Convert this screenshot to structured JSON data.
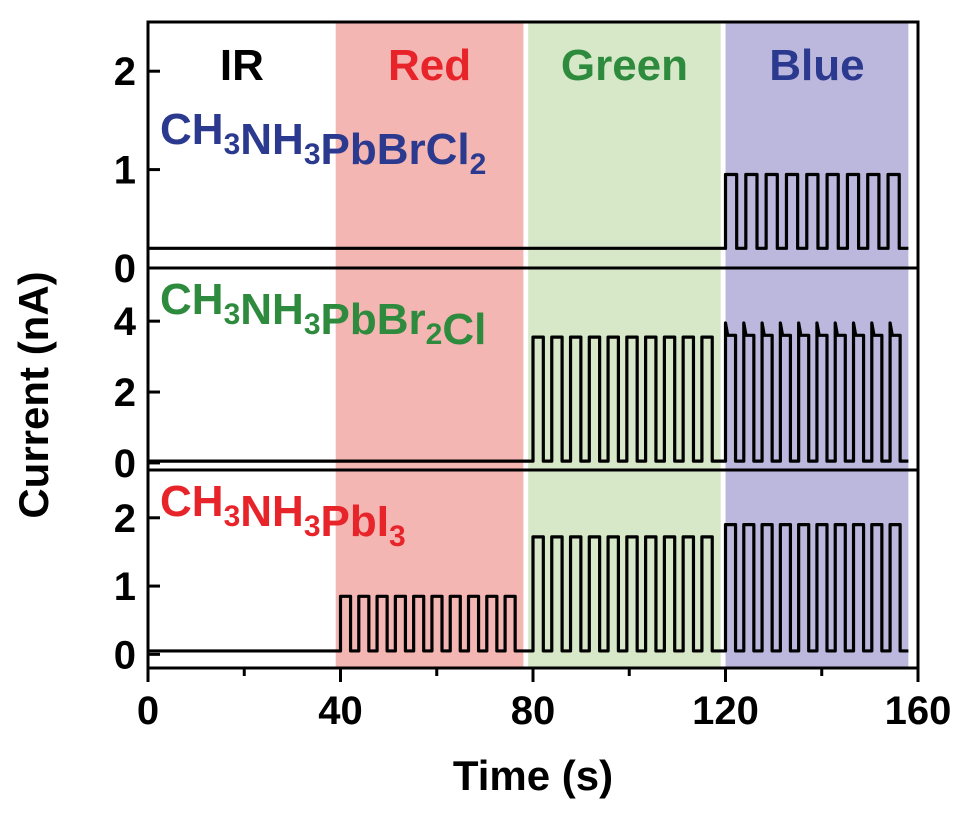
{
  "chart_data": {
    "type": "line",
    "xlabel": "Time (s)",
    "ylabel": "Current (nA)",
    "xlim": [
      0,
      160
    ],
    "x_ticks": [
      "0",
      "40",
      "80",
      "120",
      "160"
    ],
    "grid": false,
    "illumination_bands": [
      {
        "label": "IR",
        "start": 0,
        "end": 39,
        "color": "#ffffff",
        "text_color": "#000000"
      },
      {
        "label": "Red",
        "start": 39,
        "end": 78,
        "color": "#f4b6b3",
        "text_color": "#e8242b"
      },
      {
        "label": "Green",
        "start": 79,
        "end": 119,
        "color": "#d6e8c8",
        "text_color": "#2e8b3e"
      },
      {
        "label": "Blue",
        "start": 120,
        "end": 158,
        "color": "#bcb7dc",
        "text_color": "#2b3a8f"
      }
    ],
    "panels": [
      {
        "material": {
          "pre": "CH",
          "s1": "3",
          "mid": "NH",
          "s2": "3",
          "post": "PbBrCl",
          "s3": "2",
          "tail": ""
        },
        "material_color": "#2b3a8f",
        "ylim": [
          0,
          2.5
        ],
        "y_ticks": [
          "0",
          "1",
          "2"
        ],
        "baseline": 0.2,
        "segments": [
          {
            "start": 0,
            "end": 120,
            "on": 0.2,
            "off": 0.2,
            "pulses": 0
          },
          {
            "start": 120,
            "end": 158,
            "on": 0.95,
            "off": 0.2,
            "pulses": 9
          }
        ]
      },
      {
        "material": {
          "pre": "CH",
          "s1": "3",
          "mid": "NH",
          "s2": "3",
          "post": "PbBr",
          "s3": "2",
          "tail": "Cl"
        },
        "material_color": "#2e8b3e",
        "ylim": [
          -0.2,
          5.5
        ],
        "y_ticks": [
          "0",
          "2",
          "4"
        ],
        "baseline": 0.05,
        "segments": [
          {
            "start": 0,
            "end": 80,
            "on": 0.05,
            "off": 0.05,
            "pulses": 0
          },
          {
            "start": 80,
            "end": 119,
            "on": 3.55,
            "off": 0.05,
            "pulses": 10
          },
          {
            "start": 120,
            "end": 158,
            "on": 3.6,
            "off": 0.05,
            "peak": 3.95,
            "pulses": 10
          }
        ]
      },
      {
        "material": {
          "pre": "CH",
          "s1": "3",
          "mid": "NH",
          "s2": "3",
          "post": "PbI",
          "s3": "3",
          "tail": ""
        },
        "material_color": "#e8242b",
        "ylim": [
          -0.2,
          2.7
        ],
        "y_ticks": [
          "0",
          "1",
          "2"
        ],
        "baseline": 0.05,
        "segments": [
          {
            "start": 0,
            "end": 40,
            "on": 0.05,
            "off": 0.05,
            "pulses": 0
          },
          {
            "start": 40,
            "end": 78,
            "on": 0.85,
            "off": 0.05,
            "pulses": 10
          },
          {
            "start": 80,
            "end": 119,
            "on": 1.72,
            "off": 0.05,
            "pulses": 10
          },
          {
            "start": 120,
            "end": 158,
            "on": 1.9,
            "off": 0.05,
            "pulses": 10
          }
        ]
      }
    ]
  }
}
